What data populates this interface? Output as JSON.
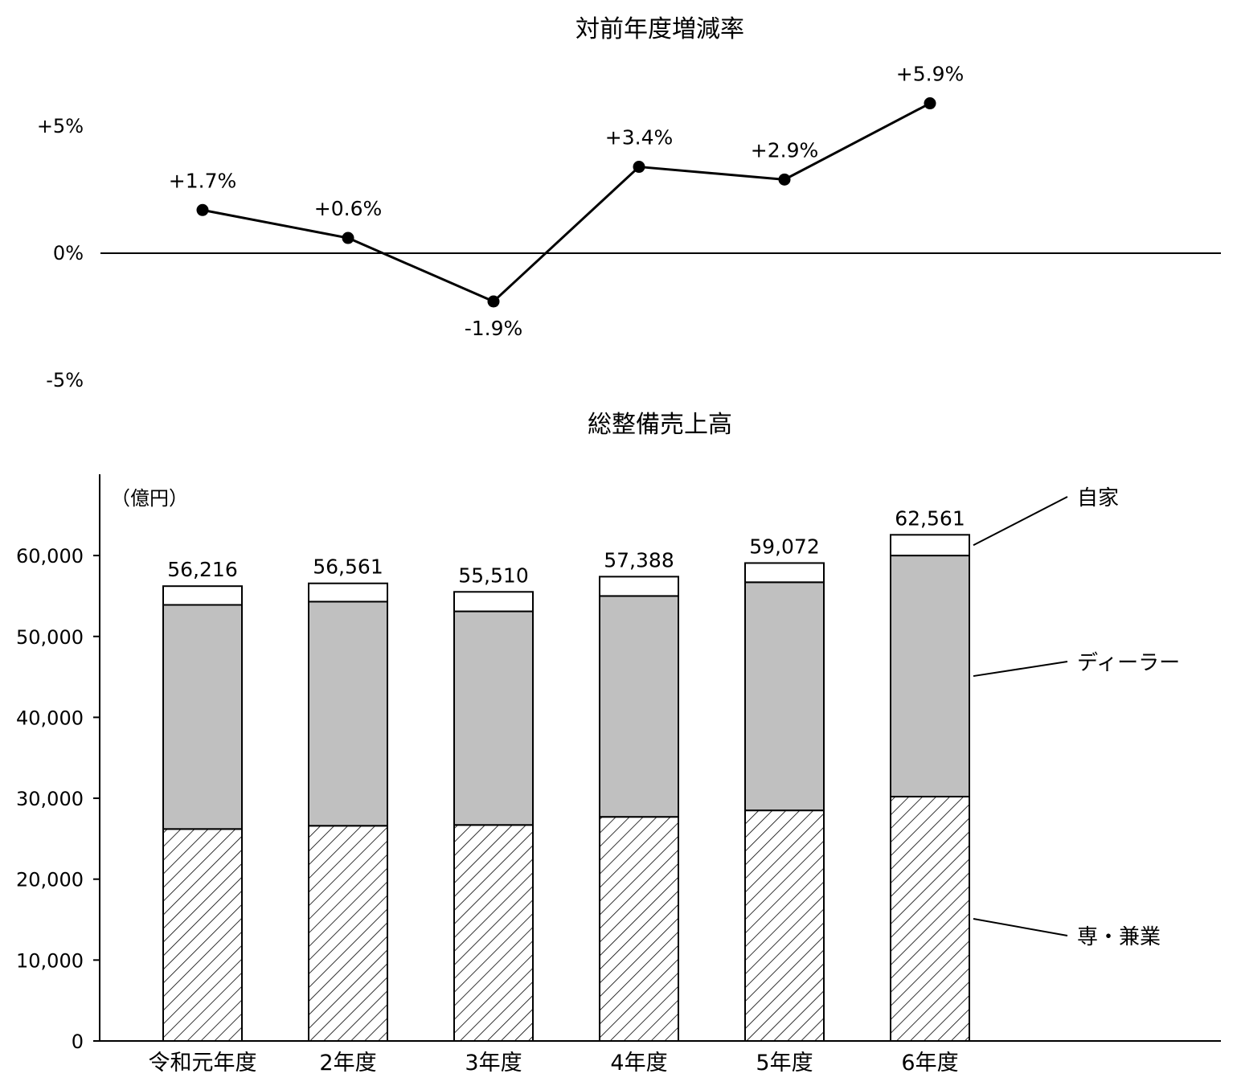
{
  "chart_data": [
    {
      "type": "line",
      "title": "対前年度増減率",
      "categories": [
        "令和元年度",
        "2年度",
        "3年度",
        "4年度",
        "5年度",
        "6年度"
      ],
      "values": [
        1.7,
        0.6,
        -1.9,
        3.4,
        2.9,
        5.9
      ],
      "data_labels": [
        "+1.7%",
        "+0.6%",
        "-1.9%",
        "+3.4%",
        "+2.9%",
        "+5.9%"
      ],
      "ylim": [
        -5,
        5
      ],
      "yticks": [
        5,
        0,
        -5
      ],
      "ytick_labels": [
        "+5%",
        "0%",
        "-5%"
      ],
      "grid": false,
      "colors": {
        "line": "#000000",
        "marker": "#000000"
      }
    },
    {
      "type": "bar",
      "stacked": true,
      "title": "総整備売上高",
      "unit_label": "（億円）",
      "categories": [
        "令和元年度",
        "2年度",
        "3年度",
        "4年度",
        "5年度",
        "6年度"
      ],
      "series": [
        {
          "name": "専・兼業",
          "values": [
            26200,
            26600,
            26700,
            27700,
            28500,
            30200
          ],
          "fill": "hatch"
        },
        {
          "name": "ディーラー",
          "values": [
            27700,
            27700,
            26400,
            27300,
            28200,
            29800
          ],
          "fill": "#c0c0c0"
        },
        {
          "name": "自家",
          "values": [
            2316,
            2261,
            2410,
            2388,
            2372,
            2561
          ],
          "fill": "#ffffff"
        }
      ],
      "totals": [
        56216,
        56561,
        55510,
        57388,
        59072,
        62561
      ],
      "total_labels": [
        "56,216",
        "56,561",
        "55,510",
        "57,388",
        "59,072",
        "62,561"
      ],
      "ylim": [
        0,
        70000
      ],
      "yticks": [
        0,
        10000,
        20000,
        30000,
        40000,
        50000,
        60000
      ],
      "ytick_labels": [
        "0",
        "10,000",
        "20,000",
        "30,000",
        "40,000",
        "50,000",
        "60,000"
      ],
      "legend": "right, leader lines to last bar",
      "grid": false
    }
  ]
}
